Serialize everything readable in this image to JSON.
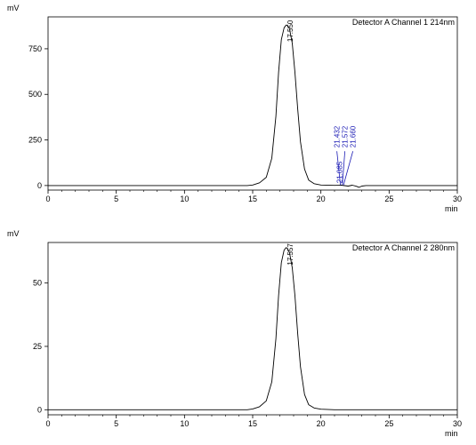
{
  "chart_data": [
    {
      "type": "line",
      "ylabel": "mV",
      "xlabel": "min",
      "legend": "Detector A Channel 1 214nm",
      "xlim": [
        0,
        30
      ],
      "ylim": [
        -25,
        925
      ],
      "xticks": [
        0,
        5,
        10,
        15,
        20,
        25,
        30
      ],
      "yticks": [
        0,
        250,
        500,
        750
      ],
      "ytick_labels": [
        "0",
        "250",
        "500",
        "750"
      ],
      "series": [
        {
          "color": "#000000",
          "x": [
            0,
            14.6,
            15.0,
            15.5,
            16.0,
            16.4,
            16.7,
            16.9,
            17.1,
            17.3,
            17.45,
            17.55,
            17.7,
            17.9,
            18.1,
            18.3,
            18.5,
            18.8,
            19.1,
            19.5,
            20.0,
            21.0,
            21.5,
            22.0,
            22.3,
            22.6,
            22.8,
            23.0,
            23.3,
            30
          ],
          "y": [
            0,
            0,
            3,
            15,
            45,
            150,
            380,
            620,
            800,
            865,
            880,
            878,
            860,
            780,
            620,
            420,
            240,
            90,
            30,
            10,
            3,
            1,
            2,
            -3,
            2,
            -4,
            -10,
            -3,
            0,
            0
          ]
        }
      ],
      "peaks": [
        {
          "label": "17.550",
          "x": 17.55,
          "y": 878,
          "color": "#000000"
        },
        {
          "label": "21.432",
          "x": 21.432,
          "y": 3,
          "color": "#1a1ab4"
        },
        {
          "label": "21.572",
          "x": 21.572,
          "y": 3,
          "color": "#1a1ab4"
        },
        {
          "label": "21.660",
          "x": 21.66,
          "y": 3,
          "color": "#1a1ab4"
        },
        {
          "label": "21.085",
          "x": 21.085,
          "y": 3,
          "color": "#1a1ab4"
        }
      ]
    },
    {
      "type": "line",
      "ylabel": "mV",
      "xlabel": "min",
      "legend": "Detector A Channel 2 280nm",
      "xlim": [
        0,
        30
      ],
      "ylim": [
        -2,
        66
      ],
      "xticks": [
        0,
        5,
        10,
        15,
        20,
        25,
        30
      ],
      "yticks": [
        0,
        25,
        50
      ],
      "ytick_labels": [
        "0",
        "25",
        "50"
      ],
      "series": [
        {
          "color": "#000000",
          "x": [
            0,
            14.6,
            15.0,
            15.5,
            16.0,
            16.4,
            16.7,
            16.9,
            17.1,
            17.3,
            17.45,
            17.55,
            17.7,
            17.9,
            18.1,
            18.3,
            18.5,
            18.8,
            19.1,
            19.5,
            20.0,
            21.0,
            30
          ],
          "y": [
            0,
            0,
            0.3,
            1.2,
            3.5,
            11,
            28,
            45,
            58,
            63,
            64,
            63.5,
            62,
            56,
            45,
            30,
            17,
            6,
            2,
            0.7,
            0.2,
            0,
            0
          ]
        }
      ],
      "peaks": [
        {
          "label": "17.557",
          "x": 17.557,
          "y": 63.5,
          "color": "#000000"
        }
      ]
    }
  ]
}
